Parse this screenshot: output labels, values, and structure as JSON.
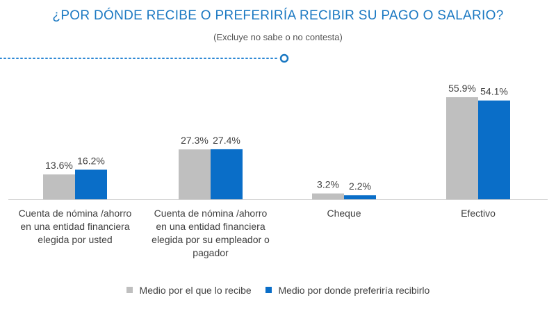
{
  "header": {
    "title": "¿POR DÓNDE RECIBE O PREFERIRÍA RECIBIR SU PAGO O SALARIO?",
    "subtitle": "(Excluye no sabe o no contesta)"
  },
  "colors": {
    "title": "#1a78c2",
    "series_1": "#bfbfbf",
    "series_2": "#0a6ec8",
    "axis": "#d0d0d0",
    "text": "#404040"
  },
  "chart_data": {
    "type": "bar",
    "title": "¿POR DÓNDE RECIBE O PREFERIRÍA RECIBIR SU PAGO O SALARIO?",
    "subtitle": "(Excluye no sabe o no contesta)",
    "xlabel": "",
    "ylabel": "",
    "ylim": [
      0,
      60
    ],
    "grid": false,
    "legend_position": "bottom",
    "categories": [
      [
        "Cuenta de nómina /ahorro",
        "en una entidad financiera",
        "elegida por usted"
      ],
      [
        "Cuenta de nómina /ahorro",
        "en una entidad financiera",
        "elegida por su empleador o",
        "pagador"
      ],
      [
        "Cheque"
      ],
      [
        "Efectivo"
      ]
    ],
    "series": [
      {
        "name": "Medio por el que lo recibe",
        "values": [
          13.6,
          27.3,
          3.2,
          55.9
        ],
        "labels": [
          "13.6%",
          "27.3%",
          "3.2%",
          "55.9%"
        ]
      },
      {
        "name": "Medio por donde preferiría recibirlo",
        "values": [
          16.2,
          27.4,
          2.2,
          54.1
        ],
        "labels": [
          "16.2%",
          "27.4%",
          "2.2%",
          "54.1%"
        ]
      }
    ]
  }
}
